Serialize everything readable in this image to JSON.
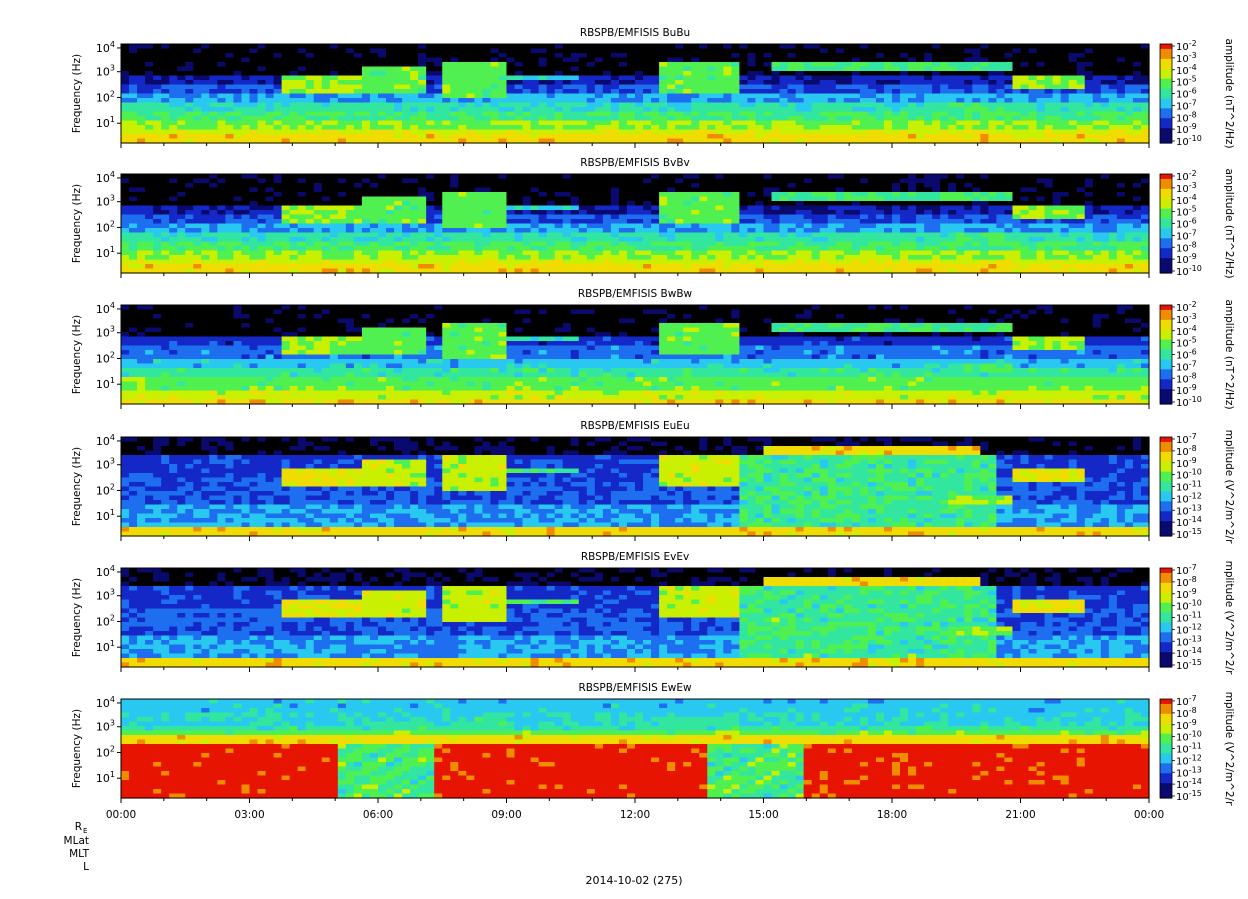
{
  "date_label": "2014-10-02 (275)",
  "ephemeris_labels": [
    "R",
    "MLat",
    "MLT",
    "L"
  ],
  "ephemeris_subscript": "E",
  "x_ticks": [
    "00:00",
    "03:00",
    "06:00",
    "09:00",
    "12:00",
    "15:00",
    "18:00",
    "21:00",
    "00:00"
  ],
  "chart_data": [
    {
      "type": "heatmap",
      "title": "RBSPB/EMFISIS  BuBu",
      "ylabel": "Frequency (Hz)",
      "yscale": "log",
      "y_ticks": [
        {
          "b": "10",
          "e": "1"
        },
        {
          "b": "10",
          "e": "2"
        },
        {
          "b": "10",
          "e": "3"
        },
        {
          "b": "10",
          "e": "4"
        }
      ],
      "colorbar_label": "amplitude (nT^2/Hz)",
      "colorbar_ticks": [
        {
          "b": "10",
          "e": "-2"
        },
        {
          "b": "10",
          "e": "-3"
        },
        {
          "b": "10",
          "e": "-4"
        },
        {
          "b": "10",
          "e": "-5"
        },
        {
          "b": "10",
          "e": "-6"
        },
        {
          "b": "10",
          "e": "-7"
        },
        {
          "b": "10",
          "e": "-8"
        },
        {
          "b": "10",
          "e": "-9"
        },
        {
          "b": "10",
          "e": "-10"
        }
      ],
      "colors": [
        "#000000",
        "#0a0a6e",
        "#1428c8",
        "#1e6ef0",
        "#28c8f0",
        "#32e6a0",
        "#50f050",
        "#c8f000",
        "#f0dc00",
        "#f08c00",
        "#e61400"
      ],
      "style": "b"
    },
    {
      "type": "heatmap",
      "title": "RBSPB/EMFISIS  BvBv",
      "ylabel": "Frequency (Hz)",
      "yscale": "log",
      "y_ticks": [
        {
          "b": "10",
          "e": "1"
        },
        {
          "b": "10",
          "e": "2"
        },
        {
          "b": "10",
          "e": "3"
        },
        {
          "b": "10",
          "e": "4"
        }
      ],
      "colorbar_label": "amplitude (nT^2/Hz)",
      "colorbar_ticks": [
        {
          "b": "10",
          "e": "-2"
        },
        {
          "b": "10",
          "e": "-3"
        },
        {
          "b": "10",
          "e": "-4"
        },
        {
          "b": "10",
          "e": "-5"
        },
        {
          "b": "10",
          "e": "-6"
        },
        {
          "b": "10",
          "e": "-7"
        },
        {
          "b": "10",
          "e": "-8"
        },
        {
          "b": "10",
          "e": "-9"
        },
        {
          "b": "10",
          "e": "-10"
        }
      ],
      "colors": [
        "#000000",
        "#0a0a6e",
        "#1428c8",
        "#1e6ef0",
        "#28c8f0",
        "#32e6a0",
        "#50f050",
        "#c8f000",
        "#f0dc00",
        "#f08c00",
        "#e61400"
      ],
      "style": "b"
    },
    {
      "type": "heatmap",
      "title": "RBSPB/EMFISIS  BwBw",
      "ylabel": "Frequency (Hz)",
      "yscale": "log",
      "y_ticks": [
        {
          "b": "10",
          "e": "1"
        },
        {
          "b": "10",
          "e": "2"
        },
        {
          "b": "10",
          "e": "3"
        },
        {
          "b": "10",
          "e": "4"
        }
      ],
      "colorbar_label": "amplitude (nT^2/Hz)",
      "colorbar_ticks": [
        {
          "b": "10",
          "e": "-2"
        },
        {
          "b": "10",
          "e": "-3"
        },
        {
          "b": "10",
          "e": "-4"
        },
        {
          "b": "10",
          "e": "-5"
        },
        {
          "b": "10",
          "e": "-6"
        },
        {
          "b": "10",
          "e": "-7"
        },
        {
          "b": "10",
          "e": "-8"
        },
        {
          "b": "10",
          "e": "-9"
        },
        {
          "b": "10",
          "e": "-10"
        }
      ],
      "colors": [
        "#000000",
        "#0a0a6e",
        "#1428c8",
        "#1e6ef0",
        "#28c8f0",
        "#32e6a0",
        "#50f050",
        "#c8f000",
        "#f0dc00",
        "#f08c00",
        "#e61400"
      ],
      "style": "bw"
    },
    {
      "type": "heatmap",
      "title": "RBSPB/EMFISIS  EuEu",
      "ylabel": "Frequency (Hz)",
      "yscale": "log",
      "y_ticks": [
        {
          "b": "10",
          "e": "1"
        },
        {
          "b": "10",
          "e": "2"
        },
        {
          "b": "10",
          "e": "3"
        },
        {
          "b": "10",
          "e": "4"
        }
      ],
      "colorbar_label": "mplitude (V^2/m^2/r",
      "colorbar_ticks": [
        {
          "b": "10",
          "e": "-7"
        },
        {
          "b": "10",
          "e": "-8"
        },
        {
          "b": "10",
          "e": "-9"
        },
        {
          "b": "10",
          "e": "-10"
        },
        {
          "b": "10",
          "e": "-11"
        },
        {
          "b": "10",
          "e": "-12"
        },
        {
          "b": "10",
          "e": "-13"
        },
        {
          "b": "10",
          "e": "-14"
        },
        {
          "b": "10",
          "e": "-15"
        }
      ],
      "colors": [
        "#000000",
        "#0a0a6e",
        "#1428c8",
        "#1e6ef0",
        "#28c8f0",
        "#32e6a0",
        "#50f050",
        "#c8f000",
        "#f0dc00",
        "#f08c00",
        "#e61400"
      ],
      "style": "e"
    },
    {
      "type": "heatmap",
      "title": "RBSPB/EMFISIS  EvEv",
      "ylabel": "Frequency (Hz)",
      "yscale": "log",
      "y_ticks": [
        {
          "b": "10",
          "e": "1"
        },
        {
          "b": "10",
          "e": "2"
        },
        {
          "b": "10",
          "e": "3"
        },
        {
          "b": "10",
          "e": "4"
        }
      ],
      "colorbar_label": "mplitude (V^2/m^2/r",
      "colorbar_ticks": [
        {
          "b": "10",
          "e": "-7"
        },
        {
          "b": "10",
          "e": "-8"
        },
        {
          "b": "10",
          "e": "-9"
        },
        {
          "b": "10",
          "e": "-10"
        },
        {
          "b": "10",
          "e": "-11"
        },
        {
          "b": "10",
          "e": "-12"
        },
        {
          "b": "10",
          "e": "-13"
        },
        {
          "b": "10",
          "e": "-14"
        },
        {
          "b": "10",
          "e": "-15"
        }
      ],
      "colors": [
        "#000000",
        "#0a0a6e",
        "#1428c8",
        "#1e6ef0",
        "#28c8f0",
        "#32e6a0",
        "#50f050",
        "#c8f000",
        "#f0dc00",
        "#f08c00",
        "#e61400"
      ],
      "style": "e"
    },
    {
      "type": "heatmap",
      "title": "RBSPB/EMFISIS  EwEw",
      "ylabel": "Frequency (Hz)",
      "yscale": "log",
      "y_ticks": [
        {
          "b": "10",
          "e": "1"
        },
        {
          "b": "10",
          "e": "2"
        },
        {
          "b": "10",
          "e": "3"
        },
        {
          "b": "10",
          "e": "4"
        }
      ],
      "colorbar_label": "mplitude (V^2/m^2/r",
      "colorbar_ticks": [
        {
          "b": "10",
          "e": "-7"
        },
        {
          "b": "10",
          "e": "-8"
        },
        {
          "b": "10",
          "e": "-9"
        },
        {
          "b": "10",
          "e": "-10"
        },
        {
          "b": "10",
          "e": "-11"
        },
        {
          "b": "10",
          "e": "-12"
        },
        {
          "b": "10",
          "e": "-13"
        },
        {
          "b": "10",
          "e": "-14"
        },
        {
          "b": "10",
          "e": "-15"
        }
      ],
      "colors": [
        "#000000",
        "#0a0a6e",
        "#1428c8",
        "#1e6ef0",
        "#28c8f0",
        "#32e6a0",
        "#50f050",
        "#c8f000",
        "#f0dc00",
        "#f08c00",
        "#e61400"
      ],
      "style": "ew"
    }
  ]
}
